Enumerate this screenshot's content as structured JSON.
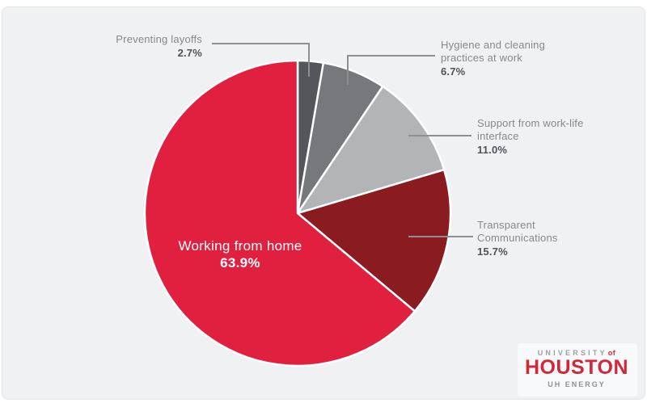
{
  "canvas": {
    "background": "#f0f1f3",
    "frame": "#ffffff",
    "panel_border": "#e4e5e8",
    "leader_line_color": "#8e8f93",
    "label_text_color": "#87888c",
    "pct_text_color": "#515257"
  },
  "chart_data": {
    "type": "pie",
    "title": "",
    "start_angle_deg": -90,
    "direction": "clockwise",
    "legend_position": "callouts",
    "slice_separator_color": "#ffffff",
    "slices": [
      {
        "label": "Preventing layoffs",
        "value": 2.7,
        "display": "2.7%",
        "color": "#55565b"
      },
      {
        "label": "Hygiene and cleaning practices at work",
        "value": 6.7,
        "display": "6.7%",
        "color": "#77787c"
      },
      {
        "label": "Support from work-life interface",
        "value": 11.0,
        "display": "11.0%",
        "color": "#b3b4b6"
      },
      {
        "label": "Transparent Communications",
        "value": 15.7,
        "display": "15.7%",
        "color": "#8a1b21"
      },
      {
        "label": "Working from home",
        "value": 63.9,
        "display": "63.9%",
        "color": "#e11f3f"
      }
    ],
    "center_label_slice": "Working from home"
  },
  "logo": {
    "university": "UNIVERSITY",
    "of": "of",
    "houston": "HOUSTON",
    "energy": "UH ENERGY",
    "brand_red": "#d22639",
    "gray": "#9fa0a4"
  }
}
